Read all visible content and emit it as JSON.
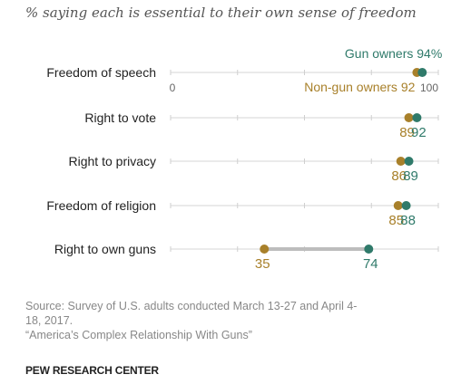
{
  "chart_data": {
    "type": "dot",
    "title": "% saying each is essential to their own sense of freedom",
    "categories": [
      "Freedom of speech",
      "Right to vote",
      "Right to privacy",
      "Freedom of religion",
      "Right to own guns"
    ],
    "xlim": [
      0,
      100
    ],
    "x_tick_labels": [
      "0",
      "100"
    ],
    "series": [
      {
        "name": "Gun owners",
        "values": [
          94,
          92,
          89,
          88,
          74
        ],
        "color": "#2f7a6a"
      },
      {
        "name": "Non-gun owners",
        "values": [
          92,
          89,
          86,
          85,
          35
        ],
        "color": "#a8802a"
      }
    ],
    "first_row_labels": {
      "gun": "Gun owners 94%",
      "nongun": "Non-gun owners 92"
    }
  },
  "footer": {
    "source_line1": "Source: Survey of U.S. adults conducted March 13-27 and April 4-",
    "source_line2": "18, 2017.",
    "report": "“America’s Complex Relationship With Guns”",
    "brand": "PEW RESEARCH CENTER"
  }
}
